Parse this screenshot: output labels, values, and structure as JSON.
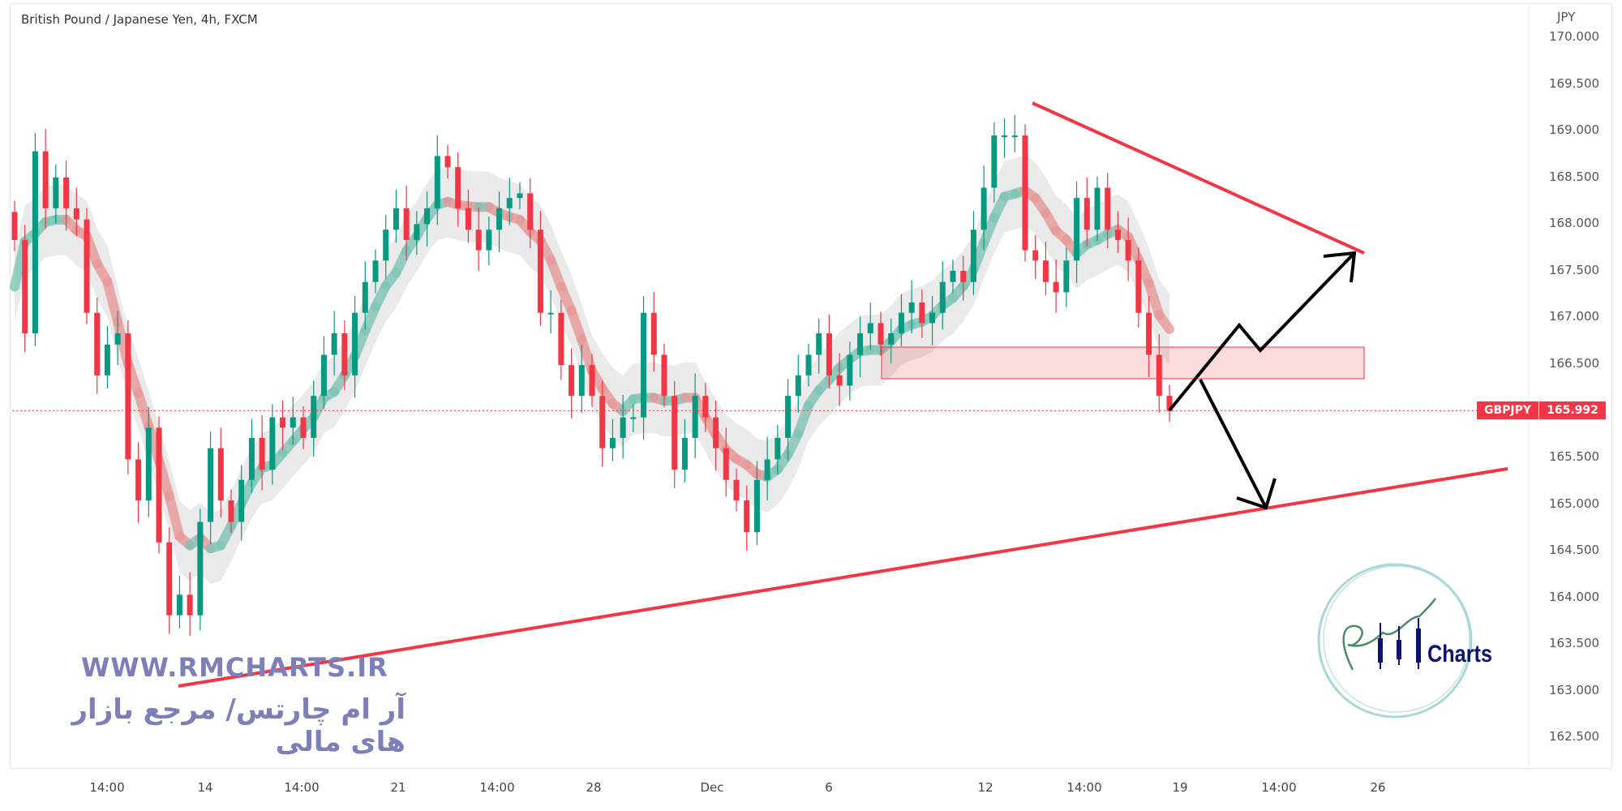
{
  "header": {
    "title": "British Pound / Japanese Yen, 4h, FXCM"
  },
  "price_axis": {
    "currency": "JPY",
    "ticks": [
      "170.000",
      "169.500",
      "169.000",
      "168.500",
      "168.000",
      "167.500",
      "167.000",
      "166.500",
      "165.500",
      "165.000",
      "164.500",
      "164.000",
      "163.500",
      "163.000",
      "162.500"
    ]
  },
  "time_axis": {
    "ticks": [
      "14:00",
      "14",
      "14:00",
      "21",
      "14:00",
      "28",
      "Dec",
      "6",
      "12",
      "14:00",
      "19",
      "14:00",
      "26"
    ]
  },
  "last_price": {
    "symbol": "GBPJPY",
    "value": "165.992"
  },
  "watermark": {
    "url": "WWW.RMCHARTS.IR",
    "tagline": "آر ام چارتس/ مرجع بازار های مالی",
    "logo_text": "Charts",
    "logo_initials": "RM"
  },
  "colors": {
    "up": "#089981",
    "down": "#f23645",
    "trendline": "#f23645",
    "zone": "#f23645",
    "arrow": "#000000",
    "watermark": "#7c7fb8",
    "logo": "#0d1470"
  },
  "chart_data": {
    "type": "candlestick",
    "title": "British Pound / Japanese Yen, 4h, FXCM",
    "ylabel": "JPY",
    "ylim": [
      162.2,
      170.1
    ],
    "close": [
      167.82,
      166.82,
      168.77,
      168.16,
      168.49,
      168.16,
      168.04,
      167.04,
      166.37,
      166.7,
      166.82,
      165.47,
      165.03,
      165.81,
      164.58,
      163.8,
      164.02,
      163.8,
      164.8,
      165.59,
      165.03,
      164.8,
      165.25,
      165.7,
      165.36,
      165.92,
      165.81,
      165.92,
      165.7,
      166.15,
      166.59,
      166.82,
      166.37,
      167.04,
      167.37,
      167.6,
      167.93,
      168.16,
      167.82,
      167.99,
      168.16,
      168.72,
      168.6,
      168.16,
      167.93,
      167.71,
      167.93,
      168.16,
      168.27,
      168.32,
      167.93,
      167.04,
      167.04,
      166.48,
      166.15,
      166.48,
      166.15,
      165.59,
      165.7,
      165.92,
      165.92,
      167.04,
      166.59,
      166.15,
      165.36,
      165.7,
      166.15,
      165.92,
      165.59,
      165.25,
      165.03,
      164.69,
      165.25,
      165.47,
      165.7,
      166.15,
      166.37,
      166.59,
      166.82,
      166.37,
      166.26,
      166.59,
      166.82,
      166.93,
      166.7,
      166.82,
      167.04,
      167.15,
      166.93,
      167.04,
      167.37,
      167.49,
      167.37,
      167.93,
      168.38,
      168.94,
      168.94,
      168.94,
      167.71,
      167.6,
      167.37,
      167.26,
      167.6,
      168.27,
      167.93,
      168.38,
      167.93,
      167.82,
      167.6,
      167.04,
      166.59,
      166.15,
      165.99
    ],
    "last_price": 165.992,
    "annotations": {
      "lower_trendline": [
        [
          163.0,
          "start"
        ],
        [
          165.4,
          "end"
        ]
      ],
      "upper_trendline": [
        [
          169.3,
          "start"
        ],
        [
          167.7,
          "end"
        ]
      ],
      "resistance_zone": [
        166.3,
        166.65
      ],
      "scenarios": [
        "up-to-upper-trendline",
        "down-to-lower-trendline"
      ]
    }
  }
}
